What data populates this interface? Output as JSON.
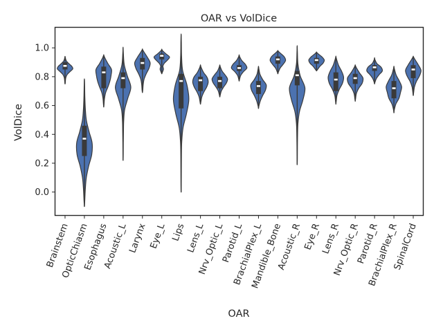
{
  "chart_data": {
    "type": "violin",
    "title": "OAR vs VolDice",
    "xlabel": "OAR",
    "ylabel": "VolDice",
    "ylim": [
      -0.16,
      1.14
    ],
    "yticks": [
      0.0,
      0.2,
      0.4,
      0.6,
      0.8,
      1.0
    ],
    "grid": false,
    "colors": {
      "violin": "#4c72b0",
      "box": "#3a3a3a",
      "median": "#ffffff"
    },
    "categories": [
      "Brainstem",
      "OpticChiasm",
      "Esophagus",
      "Acoustic_L",
      "Larynx",
      "Eye_L",
      "Lips",
      "Lens_L",
      "Nrv_Optic_L",
      "Parotid_L",
      "BrachialPlex_L",
      "Mandible_Bone",
      "Acoustic_R",
      "Eye_R",
      "Lens_R",
      "Nrv_Optic_R",
      "Parotid_R",
      "BrachialPlex_R",
      "SpinalCord"
    ],
    "stats": [
      {
        "min": 0.75,
        "q1": 0.85,
        "median": 0.875,
        "q3": 0.9,
        "max": 0.94,
        "kde": [
          0.03,
          0.06,
          0.12,
          0.3,
          0.65,
          1.0,
          0.85,
          0.45,
          0.15,
          0.04
        ]
      },
      {
        "min": -0.1,
        "q1": 0.25,
        "median": 0.37,
        "q3": 0.46,
        "max": 0.78,
        "kde": [
          0.05,
          0.12,
          0.25,
          0.55,
          0.95,
          1.0,
          0.6,
          0.25,
          0.12,
          0.06,
          0.03
        ]
      },
      {
        "min": 0.59,
        "q1": 0.72,
        "median": 0.83,
        "q3": 0.87,
        "max": 0.95,
        "kde": [
          0.04,
          0.1,
          0.25,
          0.55,
          0.8,
          0.95,
          1.0,
          0.55,
          0.15
        ]
      },
      {
        "min": 0.22,
        "q1": 0.72,
        "median": 0.79,
        "q3": 0.83,
        "max": 1.0,
        "kde": [
          0.02,
          0.03,
          0.05,
          0.08,
          0.2,
          0.6,
          1.0,
          0.55,
          0.15,
          0.04
        ]
      },
      {
        "min": 0.69,
        "q1": 0.85,
        "median": 0.895,
        "q3": 0.93,
        "max": 0.99,
        "kde": [
          0.05,
          0.1,
          0.22,
          0.5,
          0.85,
          1.0,
          0.65,
          0.2
        ]
      },
      {
        "min": 0.82,
        "q1": 0.92,
        "median": 0.945,
        "q3": 0.96,
        "max": 0.99,
        "kde": [
          0.08,
          0.22,
          0.15,
          0.35,
          0.75,
          1.0,
          0.55,
          0.12
        ]
      },
      {
        "min": 0.0,
        "q1": 0.58,
        "median": 0.77,
        "q3": 0.82,
        "max": 1.09,
        "kde": [
          0.02,
          0.03,
          0.04,
          0.08,
          0.25,
          0.7,
          1.0,
          0.75,
          0.2,
          0.06,
          0.03
        ]
      },
      {
        "min": 0.61,
        "q1": 0.7,
        "median": 0.775,
        "q3": 0.8,
        "max": 0.88,
        "kde": [
          0.06,
          0.18,
          0.45,
          0.8,
          1.0,
          0.85,
          0.4,
          0.1
        ]
      },
      {
        "min": 0.66,
        "q1": 0.72,
        "median": 0.77,
        "q3": 0.8,
        "max": 0.88,
        "kde": [
          0.06,
          0.2,
          0.5,
          0.85,
          1.0,
          0.7,
          0.3,
          0.08
        ]
      },
      {
        "min": 0.77,
        "q1": 0.84,
        "median": 0.86,
        "q3": 0.88,
        "max": 0.95,
        "kde": [
          0.06,
          0.2,
          0.55,
          1.0,
          0.8,
          0.35,
          0.08
        ]
      },
      {
        "min": 0.58,
        "q1": 0.68,
        "median": 0.735,
        "q3": 0.77,
        "max": 0.87,
        "kde": [
          0.06,
          0.25,
          0.55,
          0.9,
          1.0,
          0.55,
          0.2,
          0.06
        ]
      },
      {
        "min": 0.82,
        "q1": 0.89,
        "median": 0.92,
        "q3": 0.94,
        "max": 0.98,
        "kde": [
          0.08,
          0.3,
          0.7,
          1.0,
          0.8,
          0.25
        ]
      },
      {
        "min": 0.19,
        "q1": 0.74,
        "median": 0.81,
        "q3": 0.84,
        "max": 1.01,
        "kde": [
          0.02,
          0.03,
          0.05,
          0.1,
          0.3,
          0.75,
          1.0,
          0.4,
          0.1,
          0.03
        ]
      },
      {
        "min": 0.84,
        "q1": 0.89,
        "median": 0.915,
        "q3": 0.93,
        "max": 0.97,
        "kde": [
          0.15,
          0.45,
          0.85,
          1.0,
          0.7,
          0.2
        ]
      },
      {
        "min": 0.61,
        "q1": 0.7,
        "median": 0.78,
        "q3": 0.83,
        "max": 0.94,
        "kde": [
          0.05,
          0.15,
          0.45,
          0.85,
          1.0,
          0.75,
          0.35,
          0.1
        ]
      },
      {
        "min": 0.63,
        "q1": 0.75,
        "median": 0.79,
        "q3": 0.82,
        "max": 0.88,
        "kde": [
          0.05,
          0.15,
          0.45,
          0.9,
          1.0,
          0.55,
          0.15
        ]
      },
      {
        "min": 0.75,
        "q1": 0.84,
        "median": 0.865,
        "q3": 0.88,
        "max": 0.93,
        "kde": [
          0.06,
          0.25,
          0.6,
          1.0,
          0.85,
          0.3,
          0.06
        ]
      },
      {
        "min": 0.55,
        "q1": 0.65,
        "median": 0.72,
        "q3": 0.77,
        "max": 0.87,
        "kde": [
          0.05,
          0.25,
          0.65,
          0.85,
          1.0,
          0.7,
          0.3,
          0.08
        ]
      },
      {
        "min": 0.67,
        "q1": 0.79,
        "median": 0.85,
        "q3": 0.88,
        "max": 0.94,
        "kde": [
          0.05,
          0.15,
          0.4,
          0.8,
          1.0,
          0.65,
          0.2
        ]
      }
    ]
  }
}
